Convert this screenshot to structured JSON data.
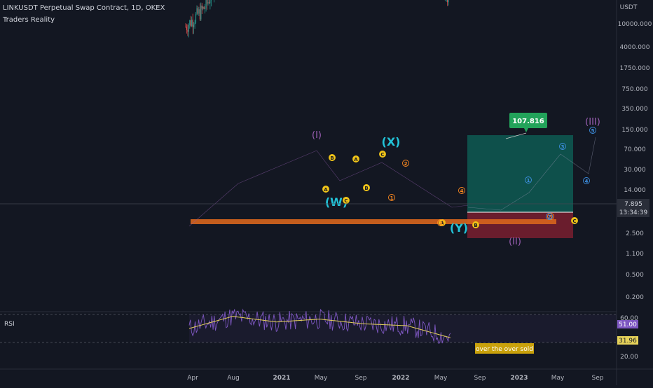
{
  "header": {
    "title": "LINKUSDT Perpetual Swap Contract, 1D, OKEX",
    "author": "Traders Reality"
  },
  "colors": {
    "background": "#131722",
    "candle_up": "#26a69a",
    "candle_down": "#ef5350",
    "rsi_line": "#7e57c2",
    "rsi_ma": "#e6d25a",
    "target_zone": "#0e5b52",
    "stop_zone": "#7a1f2f",
    "support_band": "#d8651d",
    "wave_purple": "#9c5fb5",
    "wave_cyan": "#22c3d8",
    "wave_yellow": "#f0c419",
    "wave_orange": "#ff8a1f",
    "wave_blue": "#3d8fe0",
    "tooltip_green": "#22a35a"
  },
  "chart_data": [
    {
      "type": "line",
      "title": "LINKUSDT Perpetual Swap Contract, 1D, OKEX",
      "scale": "log",
      "unit_label": "USDT",
      "ytick_labels": [
        "10000.000",
        "4000.000",
        "1750.000",
        "750.000",
        "350.000",
        "150.000",
        "70.000",
        "30.000",
        "14.000",
        "7.895",
        "2.500",
        "1.100",
        "0.500",
        "0.200"
      ],
      "xtick_labels": [
        "Apr",
        "Aug",
        "2021",
        "May",
        "Sep",
        "2022",
        "May",
        "Sep",
        "2023",
        "May",
        "Sep"
      ],
      "last_price": "7.895",
      "countdown": "13:34:39",
      "series": [
        {
          "x": [
            "Apr",
            "Jun",
            "Aug",
            "Oct",
            "2021",
            "Mar",
            "May",
            "Jul",
            "Sep",
            "Nov",
            "2022",
            "Mar",
            "May",
            "Jun"
          ],
          "values": [
            4.5,
            6.5,
            15,
            11,
            17,
            30,
            40,
            18,
            30,
            35,
            25,
            18,
            10,
            7.9
          ]
        }
      ],
      "target_label": "107.816",
      "annotations": [
        {
          "label": "(I)",
          "group": "wave_purple"
        },
        {
          "label": "(II)",
          "group": "wave_purple"
        },
        {
          "label": "(III)",
          "group": "wave_purple"
        },
        {
          "label": "(W)",
          "group": "wave_cyan"
        },
        {
          "label": "(X)",
          "group": "wave_cyan"
        },
        {
          "label": "(Y)",
          "group": "wave_cyan"
        },
        {
          "label": "A",
          "group": "wave_yellow"
        },
        {
          "label": "B",
          "group": "wave_yellow"
        },
        {
          "label": "C",
          "group": "wave_yellow"
        },
        {
          "label": "A",
          "group": "wave_yellow"
        },
        {
          "label": "B",
          "group": "wave_yellow"
        },
        {
          "label": "C",
          "group": "wave_yellow"
        },
        {
          "label": "A",
          "group": "wave_yellow"
        },
        {
          "label": "B",
          "group": "wave_yellow"
        },
        {
          "label": "C",
          "group": "wave_yellow"
        },
        {
          "label": "1",
          "group": "wave_orange"
        },
        {
          "label": "2",
          "group": "wave_orange"
        },
        {
          "label": "3",
          "group": "wave_orange"
        },
        {
          "label": "4",
          "group": "wave_orange"
        },
        {
          "label": "5",
          "group": "wave_orange"
        },
        {
          "label": "1",
          "group": "wave_blue"
        },
        {
          "label": "2",
          "group": "wave_blue"
        },
        {
          "label": "3",
          "group": "wave_blue"
        },
        {
          "label": "4",
          "group": "wave_blue"
        },
        {
          "label": "5",
          "group": "wave_blue"
        }
      ]
    },
    {
      "type": "line",
      "title": "RSI",
      "ytick_labels": [
        "60.00",
        "20.00"
      ],
      "current_rsi": "51.00",
      "current_ma": "31.96",
      "note": "over the over sold",
      "series": [
        {
          "x": [
            "Apr",
            "Aug",
            "2021",
            "May",
            "Sep",
            "2022",
            "May"
          ],
          "values": [
            45,
            58,
            52,
            55,
            50,
            48,
            35
          ]
        }
      ]
    }
  ]
}
